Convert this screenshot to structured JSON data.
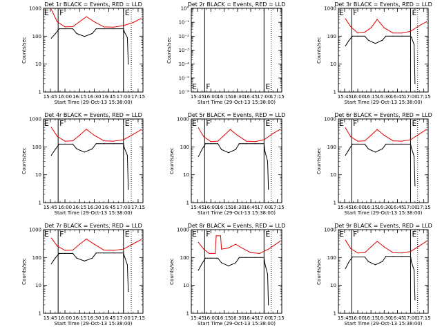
{
  "figure": {
    "title_prefix": "Det",
    "title_suffix": "BLACK = Events, RED = LLD",
    "xlabel": "Start Time (29-Oct-13 15:38:00)",
    "ylabel": "Counts/sec",
    "x_ticks": [
      "15:45",
      "16:00",
      "16:15",
      "16:30",
      "16:45",
      "17:00",
      "17:15"
    ],
    "y_ticks_log": [
      "1",
      "10",
      "100",
      "1000"
    ],
    "y_ticks_det2": [
      "10°",
      "10⁻¹",
      "10⁻²",
      "10⁻³",
      "10⁻⁴",
      "10⁻⁵",
      "10⁻⁶"
    ],
    "markers": {
      "F": "F",
      "E": "E"
    },
    "colors": {
      "events": "#000000",
      "lld": "#e00000"
    }
  },
  "chart_data": [
    {
      "type": "line",
      "title": "Det 1r BLACK = Events, RED = LLD",
      "yscale": "log",
      "ylim": [
        1,
        1000
      ],
      "x_time_range": [
        "15:38",
        "17:20"
      ],
      "markers": [
        {
          "label": "F",
          "time": "15:53"
        },
        {
          "label": "E",
          "time": "17:00"
        }
      ],
      "dotted_line_time": "17:08",
      "series": [
        {
          "name": "Events",
          "color": "#000000",
          "t": [
            "15:46",
            "15:50",
            "15:54",
            "16:00",
            "16:08",
            "16:12",
            "16:20",
            "16:28",
            "16:32",
            "16:40",
            "16:50",
            "17:00",
            "17:01",
            "17:04",
            "17:05"
          ],
          "v": [
            85,
            120,
            185,
            185,
            185,
            125,
            98,
            125,
            185,
            185,
            185,
            185,
            140,
            90,
            10
          ]
        },
        {
          "name": "LLD",
          "color": "#e00000",
          "t": [
            "15:46",
            "15:52",
            "16:00",
            "16:08",
            "16:15",
            "16:22",
            "16:30",
            "16:40",
            "16:50",
            "17:00",
            "17:10",
            "17:18"
          ],
          "v": [
            900,
            330,
            215,
            220,
            330,
            500,
            330,
            215,
            210,
            240,
            310,
            430
          ]
        }
      ]
    },
    {
      "type": "line",
      "title": "Det 2r BLACK = Events, RED = LLD",
      "yscale": "log",
      "ylim": [
        1e-06,
        1
      ],
      "x_time_range": [
        "15:38",
        "17:20"
      ],
      "markers": [
        {
          "label": "F",
          "time": "15:53"
        },
        {
          "label": "E",
          "time": "17:00"
        }
      ],
      "dotted_line_time": "17:08",
      "series": []
    },
    {
      "type": "line",
      "title": "Det 3r BLACK = Events, RED = LLD",
      "yscale": "log",
      "ylim": [
        1,
        1000
      ],
      "x_time_range": [
        "15:38",
        "17:20"
      ],
      "markers": [
        {
          "label": "F",
          "time": "15:53"
        },
        {
          "label": "E",
          "time": "17:00"
        }
      ],
      "dotted_line_time": "17:08",
      "series": [
        {
          "name": "Events",
          "color": "#000000",
          "t": [
            "15:46",
            "15:50",
            "15:54",
            "16:00",
            "16:08",
            "16:12",
            "16:20",
            "16:28",
            "16:32",
            "16:40",
            "16:50",
            "17:00",
            "17:01",
            "17:04",
            "17:05"
          ],
          "v": [
            45,
            70,
            100,
            100,
            100,
            72,
            55,
            72,
            100,
            100,
            100,
            100,
            90,
            50,
            2
          ]
        },
        {
          "name": "LLD",
          "color": "#e00000",
          "t": [
            "15:46",
            "15:52",
            "16:00",
            "16:08",
            "16:15",
            "16:22",
            "16:30",
            "16:40",
            "16:50",
            "17:00",
            "17:10",
            "17:18"
          ],
          "v": [
            420,
            220,
            130,
            140,
            200,
            400,
            200,
            130,
            130,
            150,
            240,
            330
          ]
        }
      ]
    },
    {
      "type": "line",
      "title": "Det 4r BLACK = Events, RED = LLD",
      "yscale": "log",
      "ylim": [
        1,
        1000
      ],
      "x_time_range": [
        "15:38",
        "17:20"
      ],
      "markers": [
        {
          "label": "F",
          "time": "15:53"
        },
        {
          "label": "E",
          "time": "17:00"
        }
      ],
      "dotted_line_time": "17:08",
      "series": [
        {
          "name": "Events",
          "color": "#000000",
          "t": [
            "15:46",
            "15:50",
            "15:54",
            "16:00",
            "16:08",
            "16:12",
            "16:20",
            "16:28",
            "16:32",
            "16:40",
            "16:50",
            "17:00",
            "17:01",
            "17:04",
            "17:05"
          ],
          "v": [
            50,
            80,
            125,
            125,
            125,
            85,
            65,
            85,
            130,
            130,
            130,
            130,
            90,
            50,
            3
          ]
        },
        {
          "name": "LLD",
          "color": "#e00000",
          "t": [
            "15:46",
            "15:52",
            "16:00",
            "16:08",
            "16:15",
            "16:22",
            "16:30",
            "16:40",
            "16:50",
            "17:00",
            "17:10",
            "17:18"
          ],
          "v": [
            500,
            240,
            160,
            165,
            260,
            430,
            260,
            165,
            160,
            180,
            280,
            410
          ]
        }
      ]
    },
    {
      "type": "line",
      "title": "Det 5r BLACK = Events, RED = LLD",
      "yscale": "log",
      "ylim": [
        1,
        1000
      ],
      "x_time_range": [
        "15:38",
        "17:20"
      ],
      "markers": [
        {
          "label": "F",
          "time": "15:53"
        },
        {
          "label": "E",
          "time": "17:00"
        }
      ],
      "dotted_line_time": "17:08",
      "series": [
        {
          "name": "Events",
          "color": "#000000",
          "t": [
            "15:46",
            "15:50",
            "15:54",
            "16:00",
            "16:08",
            "16:12",
            "16:20",
            "16:28",
            "16:32",
            "16:40",
            "16:50",
            "17:00",
            "17:01",
            "17:04",
            "17:05"
          ],
          "v": [
            45,
            80,
            130,
            130,
            130,
            80,
            62,
            80,
            130,
            130,
            130,
            130,
            70,
            30,
            3
          ]
        },
        {
          "name": "LLD",
          "color": "#e00000",
          "t": [
            "15:46",
            "15:52",
            "16:00",
            "16:08",
            "16:15",
            "16:22",
            "16:30",
            "16:40",
            "16:50",
            "17:00",
            "17:10",
            "17:18"
          ],
          "v": [
            480,
            230,
            155,
            160,
            260,
            420,
            260,
            160,
            155,
            180,
            300,
            420
          ]
        }
      ]
    },
    {
      "type": "line",
      "title": "Det 6r BLACK = Events, RED = LLD",
      "yscale": "log",
      "ylim": [
        1,
        1000
      ],
      "x_time_range": [
        "15:38",
        "17:20"
      ],
      "markers": [
        {
          "label": "F",
          "time": "15:53"
        },
        {
          "label": "E",
          "time": "17:00"
        }
      ],
      "dotted_line_time": "17:08",
      "series": [
        {
          "name": "Events",
          "color": "#000000",
          "t": [
            "15:46",
            "15:50",
            "15:54",
            "16:00",
            "16:08",
            "16:12",
            "16:20",
            "16:28",
            "16:32",
            "16:40",
            "16:50",
            "17:00",
            "17:01",
            "17:04",
            "17:05"
          ],
          "v": [
            50,
            80,
            125,
            125,
            125,
            85,
            65,
            85,
            125,
            125,
            125,
            125,
            90,
            45,
            4
          ]
        },
        {
          "name": "LLD",
          "color": "#e00000",
          "t": [
            "15:46",
            "15:52",
            "16:00",
            "16:08",
            "16:15",
            "16:22",
            "16:30",
            "16:40",
            "16:50",
            "17:00",
            "17:10",
            "17:18"
          ],
          "v": [
            480,
            230,
            160,
            165,
            260,
            420,
            260,
            165,
            160,
            180,
            290,
            420
          ]
        }
      ]
    },
    {
      "type": "line",
      "title": "Det 7r BLACK = Events, RED = LLD",
      "yscale": "log",
      "ylim": [
        1,
        1000
      ],
      "x_time_range": [
        "15:38",
        "17:20"
      ],
      "markers": [
        {
          "label": "F",
          "time": "15:53"
        },
        {
          "label": "E",
          "time": "17:00"
        }
      ],
      "dotted_line_time": "17:08",
      "series": [
        {
          "name": "Events",
          "color": "#000000",
          "t": [
            "15:46",
            "15:50",
            "15:54",
            "16:00",
            "16:08",
            "16:12",
            "16:20",
            "16:28",
            "16:32",
            "16:40",
            "16:50",
            "17:00",
            "17:01",
            "17:04",
            "17:05"
          ],
          "v": [
            60,
            95,
            140,
            140,
            140,
            95,
            75,
            95,
            145,
            145,
            145,
            145,
            110,
            55,
            6
          ]
        },
        {
          "name": "LLD",
          "color": "#e00000",
          "t": [
            "15:46",
            "15:52",
            "16:00",
            "16:08",
            "16:15",
            "16:22",
            "16:30",
            "16:40",
            "16:50",
            "17:00",
            "17:10",
            "17:18"
          ],
          "v": [
            500,
            260,
            180,
            185,
            300,
            460,
            300,
            185,
            180,
            200,
            310,
            440
          ]
        }
      ]
    },
    {
      "type": "line",
      "title": "Det 8r BLACK = Events, RED = LLD",
      "yscale": "log",
      "ylim": [
        1,
        1000
      ],
      "x_time_range": [
        "15:38",
        "17:20"
      ],
      "markers": [
        {
          "label": "F",
          "time": "15:53"
        },
        {
          "label": "E",
          "time": "17:00"
        }
      ],
      "dotted_line_time": "17:08",
      "series": [
        {
          "name": "Events",
          "color": "#000000",
          "t": [
            "15:46",
            "15:50",
            "15:54",
            "16:00",
            "16:08",
            "16:12",
            "16:20",
            "16:28",
            "16:32",
            "16:40",
            "16:50",
            "17:00",
            "17:01",
            "17:04",
            "17:05"
          ],
          "v": [
            35,
            60,
            95,
            95,
            95,
            65,
            50,
            65,
            100,
            100,
            100,
            100,
            60,
            25,
            2
          ]
        },
        {
          "name": "LLD",
          "color": "#e00000",
          "t": [
            "15:46",
            "15:52",
            "15:58",
            "16:05",
            "16:06",
            "16:11",
            "16:12",
            "16:20",
            "16:28",
            "16:35",
            "16:45",
            "16:55",
            "17:05",
            "17:18"
          ],
          "v": [
            350,
            200,
            140,
            140,
            600,
            600,
            200,
            220,
            300,
            220,
            150,
            140,
            200,
            380
          ]
        }
      ]
    },
    {
      "type": "line",
      "title": "Det 9r BLACK = Events, RED = LLD",
      "yscale": "log",
      "ylim": [
        1,
        1000
      ],
      "x_time_range": [
        "15:38",
        "17:20"
      ],
      "markers": [
        {
          "label": "F",
          "time": "15:53"
        },
        {
          "label": "E",
          "time": "17:00"
        }
      ],
      "dotted_line_time": "17:08",
      "series": [
        {
          "name": "Events",
          "color": "#000000",
          "t": [
            "15:46",
            "15:50",
            "15:54",
            "16:00",
            "16:08",
            "16:12",
            "16:20",
            "16:28",
            "16:32",
            "16:40",
            "16:50",
            "17:00",
            "17:01",
            "17:04",
            "17:05"
          ],
          "v": [
            40,
            70,
            105,
            105,
            105,
            72,
            55,
            72,
            110,
            110,
            110,
            110,
            70,
            35,
            3
          ]
        },
        {
          "name": "LLD",
          "color": "#e00000",
          "t": [
            "15:46",
            "15:52",
            "16:00",
            "16:08",
            "16:15",
            "16:22",
            "16:30",
            "16:40",
            "16:50",
            "17:00",
            "17:10",
            "17:18"
          ],
          "v": [
            420,
            210,
            145,
            150,
            240,
            380,
            240,
            150,
            145,
            165,
            260,
            380
          ]
        }
      ]
    }
  ]
}
